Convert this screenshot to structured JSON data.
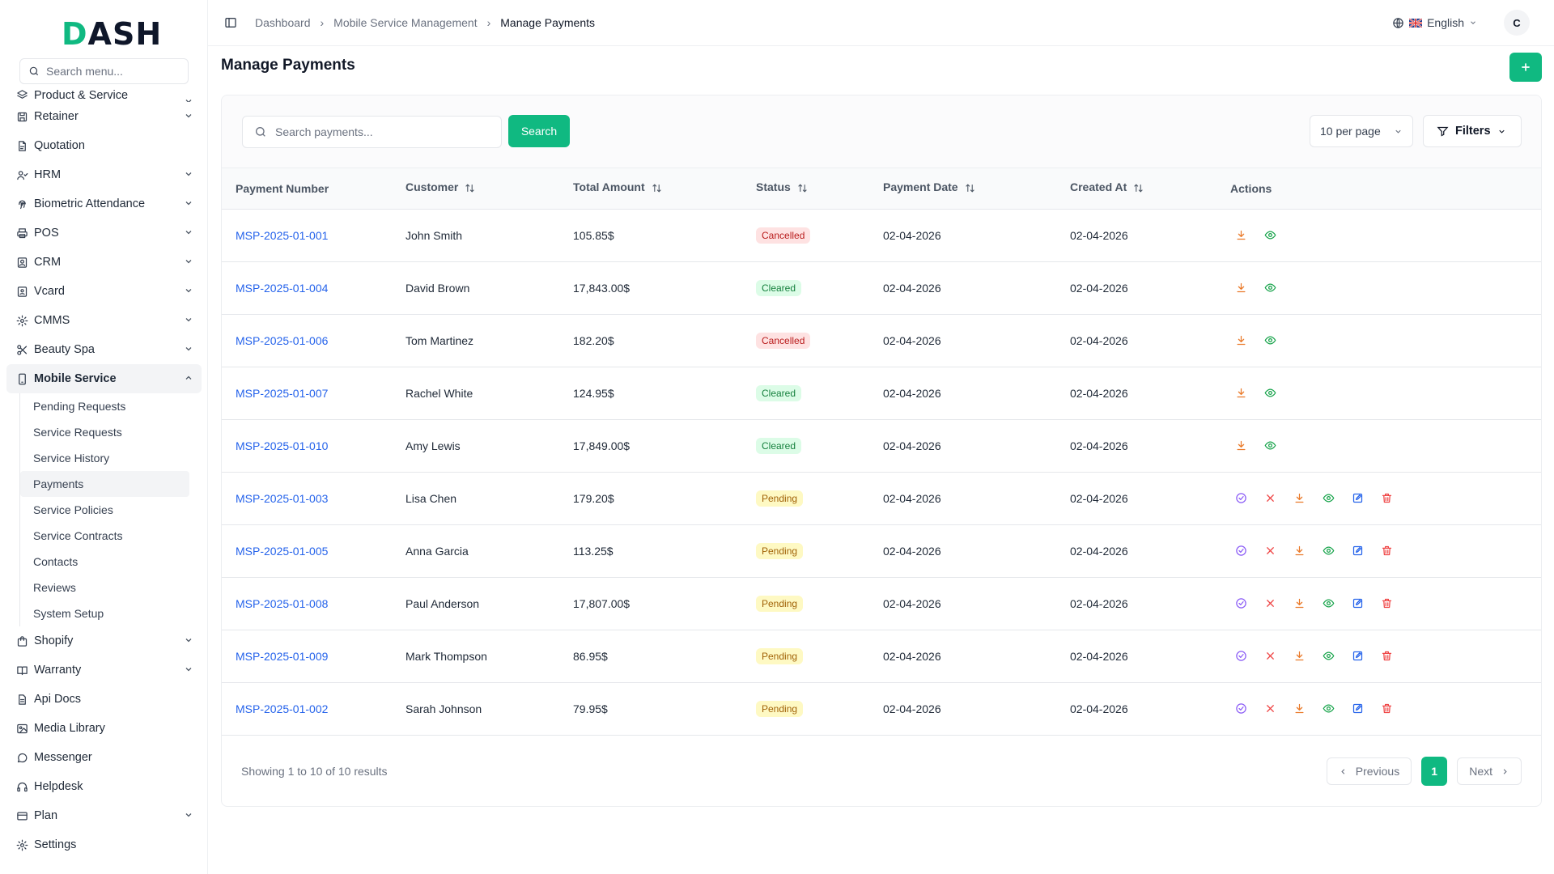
{
  "app": {
    "logo": "DASH",
    "logo_accent": "D"
  },
  "sidebar": {
    "search_placeholder": "Search menu...",
    "items": [
      {
        "label": "Product & Service",
        "icon": "layers-icon",
        "chevron": true,
        "partial": true
      },
      {
        "label": "Retainer",
        "icon": "save-icon",
        "chevron": true
      },
      {
        "label": "Quotation",
        "icon": "file-icon",
        "chevron": false
      },
      {
        "label": "HRM",
        "icon": "users-icon",
        "chevron": true
      },
      {
        "label": "Biometric Attendance",
        "icon": "fingerprint-icon",
        "chevron": true
      },
      {
        "label": "POS",
        "icon": "printer-icon",
        "chevron": true
      },
      {
        "label": "CRM",
        "icon": "contact-icon",
        "chevron": true
      },
      {
        "label": "Vcard",
        "icon": "id-card-icon",
        "chevron": true
      },
      {
        "label": "CMMS",
        "icon": "gear-icon",
        "chevron": true
      },
      {
        "label": "Beauty Spa",
        "icon": "scissors-icon",
        "chevron": true
      },
      {
        "label": "Mobile Service",
        "icon": "mobile-icon",
        "chevron": true,
        "active": true
      }
    ],
    "submenu": [
      {
        "label": "Pending Requests"
      },
      {
        "label": "Service Requests"
      },
      {
        "label": "Service History"
      },
      {
        "label": "Payments",
        "active": true
      },
      {
        "label": "Service Policies"
      },
      {
        "label": "Service Contracts"
      },
      {
        "label": "Contacts"
      },
      {
        "label": "Reviews"
      },
      {
        "label": "System Setup"
      }
    ],
    "items_after": [
      {
        "label": "Shopify",
        "icon": "shopping-bag-icon",
        "chevron": true
      },
      {
        "label": "Warranty",
        "icon": "book-icon",
        "chevron": true
      },
      {
        "label": "Api Docs",
        "icon": "document-icon",
        "chevron": false
      },
      {
        "label": "Media Library",
        "icon": "image-icon",
        "chevron": false
      },
      {
        "label": "Messenger",
        "icon": "message-icon",
        "chevron": false
      },
      {
        "label": "Helpdesk",
        "icon": "headset-icon",
        "chevron": false
      },
      {
        "label": "Plan",
        "icon": "credit-card-icon",
        "chevron": true
      },
      {
        "label": "Settings",
        "icon": "gear-icon",
        "chevron": false
      }
    ]
  },
  "header": {
    "breadcrumb": [
      "Dashboard",
      "Mobile Service Management",
      "Manage Payments"
    ],
    "language": "English",
    "avatar_initial": "C"
  },
  "page": {
    "title": "Manage Payments",
    "add_label": "+",
    "search_placeholder": "Search payments...",
    "search_button": "Search",
    "per_page": "10 per page",
    "filters_label": "Filters"
  },
  "table": {
    "columns": [
      "Payment Number",
      "Customer",
      "Total Amount",
      "Status",
      "Payment Date",
      "Created At",
      "Actions"
    ],
    "rows": [
      {
        "number": "MSP-2025-01-001",
        "customer": "John Smith",
        "amount": "105.85$",
        "status": "Cancelled",
        "payment_date": "02-04-2026",
        "created_at": "02-04-2026"
      },
      {
        "number": "MSP-2025-01-004",
        "customer": "David Brown",
        "amount": "17,843.00$",
        "status": "Cleared",
        "payment_date": "02-04-2026",
        "created_at": "02-04-2026"
      },
      {
        "number": "MSP-2025-01-006",
        "customer": "Tom Martinez",
        "amount": "182.20$",
        "status": "Cancelled",
        "payment_date": "02-04-2026",
        "created_at": "02-04-2026"
      },
      {
        "number": "MSP-2025-01-007",
        "customer": "Rachel White",
        "amount": "124.95$",
        "status": "Cleared",
        "payment_date": "02-04-2026",
        "created_at": "02-04-2026"
      },
      {
        "number": "MSP-2025-01-010",
        "customer": "Amy Lewis",
        "amount": "17,849.00$",
        "status": "Cleared",
        "payment_date": "02-04-2026",
        "created_at": "02-04-2026"
      },
      {
        "number": "MSP-2025-01-003",
        "customer": "Lisa Chen",
        "amount": "179.20$",
        "status": "Pending",
        "payment_date": "02-04-2026",
        "created_at": "02-04-2026"
      },
      {
        "number": "MSP-2025-01-005",
        "customer": "Anna Garcia",
        "amount": "113.25$",
        "status": "Pending",
        "payment_date": "02-04-2026",
        "created_at": "02-04-2026"
      },
      {
        "number": "MSP-2025-01-008",
        "customer": "Paul Anderson",
        "amount": "17,807.00$",
        "status": "Pending",
        "payment_date": "02-04-2026",
        "created_at": "02-04-2026"
      },
      {
        "number": "MSP-2025-01-009",
        "customer": "Mark Thompson",
        "amount": "86.95$",
        "status": "Pending",
        "payment_date": "02-04-2026",
        "created_at": "02-04-2026"
      },
      {
        "number": "MSP-2025-01-002",
        "customer": "Sarah Johnson",
        "amount": "79.95$",
        "status": "Pending",
        "payment_date": "02-04-2026",
        "created_at": "02-04-2026"
      }
    ]
  },
  "pagination": {
    "summary": "Showing 1 to 10 of 10 results",
    "previous": "Previous",
    "current": "1",
    "next": "Next"
  },
  "colors": {
    "accent": "#10b981",
    "link": "#2563eb",
    "download": "#ea7a2a",
    "view": "#16a34a",
    "approve": "#8b5cf6",
    "reject": "#ef4444",
    "edit": "#2563eb",
    "delete": "#ef4444"
  }
}
